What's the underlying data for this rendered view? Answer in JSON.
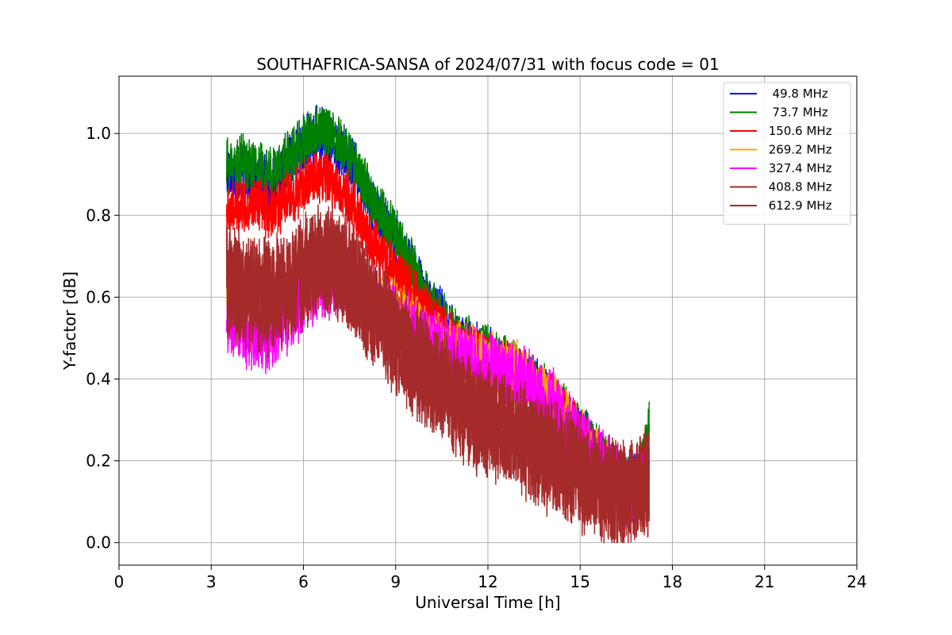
{
  "chart_data": {
    "type": "line",
    "title": "SOUTHAFRICA-SANSA of 2024/07/31 with focus code = 01",
    "xlabel": "Universal Time [h]",
    "ylabel": "Y-factor [dB]",
    "xlim": [
      0,
      24
    ],
    "ylim": [
      -0.055,
      1.14
    ],
    "xticks": [
      0,
      3,
      6,
      9,
      12,
      15,
      18,
      21,
      24
    ],
    "xtick_labels": [
      "0",
      "3",
      "6",
      "9",
      "12",
      "15",
      "18",
      "21",
      "24"
    ],
    "yticks": [
      0.0,
      0.2,
      0.4,
      0.6,
      0.8,
      1.0
    ],
    "ytick_labels": [
      "0.0",
      "0.2",
      "0.4",
      "0.6",
      "0.8",
      "1.0"
    ],
    "grid": true,
    "legend_position": "top-right",
    "series": [
      {
        "name": "  49.8 MHz",
        "color": "#0000ff",
        "x": [
          3.5,
          4.0,
          5.0,
          6.0,
          6.5,
          7.0,
          7.5,
          8.0,
          9.0,
          10.0,
          11.0,
          12.0,
          13.0,
          14.0,
          15.0,
          16.0,
          16.5,
          17.0,
          17.25
        ],
        "y": [
          0.9,
          0.9,
          0.88,
          0.97,
          1.0,
          0.98,
          0.94,
          0.86,
          0.74,
          0.6,
          0.5,
          0.46,
          0.42,
          0.36,
          0.27,
          0.18,
          0.14,
          0.17,
          0.27
        ],
        "spread": 0.06
      },
      {
        "name": "  73.7 MHz",
        "color": "#008000",
        "x": [
          3.5,
          4.0,
          5.0,
          6.0,
          6.5,
          7.0,
          7.5,
          8.0,
          9.0,
          10.0,
          11.0,
          12.0,
          13.0,
          14.0,
          15.0,
          16.0,
          16.5,
          17.0,
          17.25
        ],
        "y": [
          0.92,
          0.93,
          0.9,
          0.98,
          1.01,
          0.99,
          0.95,
          0.87,
          0.75,
          0.6,
          0.5,
          0.46,
          0.42,
          0.36,
          0.27,
          0.18,
          0.14,
          0.18,
          0.28
        ],
        "spread": 0.06
      },
      {
        "name": " 150.6 MHz",
        "color": "#ff0000",
        "x": [
          3.5,
          4.0,
          5.0,
          6.0,
          6.5,
          7.0,
          7.5,
          8.0,
          9.0,
          10.0,
          11.0,
          12.0,
          13.0,
          14.0,
          15.0,
          16.0,
          16.5,
          17.0,
          17.25
        ],
        "y": [
          0.8,
          0.83,
          0.81,
          0.87,
          0.9,
          0.88,
          0.84,
          0.76,
          0.66,
          0.56,
          0.48,
          0.45,
          0.41,
          0.35,
          0.26,
          0.17,
          0.13,
          0.16,
          0.22
        ],
        "spread": 0.06
      },
      {
        "name": " 269.2 MHz",
        "color": "#ffa500",
        "x": [
          3.5,
          4.0,
          5.0,
          6.0,
          6.5,
          7.0,
          7.5,
          8.0,
          9.0,
          10.0,
          11.0,
          12.0,
          13.0,
          14.0,
          15.0,
          16.0,
          16.5,
          17.0,
          17.25
        ],
        "y": [
          0.6,
          0.58,
          0.57,
          0.63,
          0.67,
          0.66,
          0.64,
          0.6,
          0.56,
          0.5,
          0.46,
          0.44,
          0.41,
          0.35,
          0.26,
          0.16,
          0.12,
          0.14,
          0.18
        ],
        "spread": 0.07
      },
      {
        "name": " 327.4 MHz",
        "color": "#ff00ff",
        "x": [
          3.5,
          4.0,
          5.0,
          6.0,
          6.5,
          7.0,
          7.5,
          8.0,
          9.0,
          10.0,
          11.0,
          12.0,
          13.0,
          14.0,
          15.0,
          16.0,
          16.5,
          17.0,
          17.25
        ],
        "y": [
          0.55,
          0.52,
          0.5,
          0.6,
          0.64,
          0.64,
          0.62,
          0.59,
          0.55,
          0.49,
          0.45,
          0.43,
          0.4,
          0.34,
          0.25,
          0.16,
          0.12,
          0.14,
          0.17
        ],
        "spread": 0.08
      },
      {
        "name": " 408.8 MHz",
        "color": "#a52a2a",
        "x": [
          3.5,
          4.0,
          5.0,
          6.0,
          6.5,
          7.0,
          7.5,
          8.0,
          9.0,
          10.0,
          11.0,
          12.0,
          13.0,
          14.0,
          15.0,
          16.0,
          16.5,
          17.0,
          17.25
        ],
        "y": [
          0.64,
          0.62,
          0.6,
          0.66,
          0.69,
          0.69,
          0.66,
          0.6,
          0.5,
          0.42,
          0.35,
          0.3,
          0.26,
          0.22,
          0.17,
          0.13,
          0.12,
          0.13,
          0.16
        ],
        "spread": 0.12
      },
      {
        "name": " 612.9 MHz",
        "color": "#a52a2a",
        "x": [
          3.5,
          4.0,
          5.0,
          6.0,
          6.5,
          7.0,
          7.5,
          8.0,
          9.0,
          10.0,
          11.0,
          12.0,
          13.0,
          14.0,
          15.0,
          16.0,
          16.5,
          17.0,
          17.25
        ],
        "y": [
          0.63,
          0.61,
          0.6,
          0.66,
          0.68,
          0.68,
          0.65,
          0.59,
          0.49,
          0.41,
          0.34,
          0.29,
          0.25,
          0.21,
          0.16,
          0.12,
          0.12,
          0.13,
          0.16
        ],
        "spread": 0.12
      }
    ]
  }
}
